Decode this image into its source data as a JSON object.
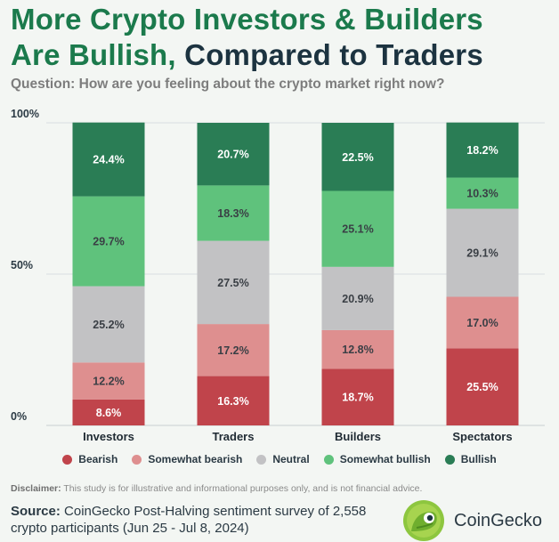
{
  "title": {
    "line1": "More Crypto Investors & Builders",
    "line2_green": "Are Bullish,",
    "line2_dark": "Compared to Traders"
  },
  "question": "Question: How are you feeling about the crypto market right now?",
  "chart_data": {
    "type": "bar",
    "stacked": true,
    "categories": [
      "Investors",
      "Traders",
      "Builders",
      "Spectators"
    ],
    "ylim": [
      0,
      100
    ],
    "yticks": [
      "0%",
      "50%",
      "100%"
    ],
    "grid": true,
    "legend_position": "bottom",
    "series": [
      {
        "name": "Bearish",
        "color": "#c0444b",
        "values": [
          8.6,
          16.3,
          18.7,
          25.5
        ],
        "labels": [
          "8.6%",
          "16.3%",
          "18.7%",
          "25.5%"
        ]
      },
      {
        "name": "Somewhat bearish",
        "color": "#de8f8f",
        "values": [
          12.2,
          17.2,
          12.8,
          17.0
        ],
        "labels": [
          "12.2%",
          "17.2%",
          "12.8%",
          "17.0%"
        ]
      },
      {
        "name": "Neutral",
        "color": "#c2c2c4",
        "values": [
          25.2,
          27.5,
          20.9,
          29.1
        ],
        "labels": [
          "25.2%",
          "27.5%",
          "20.9%",
          "29.1%"
        ]
      },
      {
        "name": "Somewhat bullish",
        "color": "#5fc27c",
        "values": [
          29.7,
          18.3,
          25.1,
          10.3
        ],
        "labels": [
          "29.7%",
          "18.3%",
          "25.1%",
          "10.3%"
        ]
      },
      {
        "name": "Bullish",
        "color": "#2a7d55",
        "values": [
          24.4,
          20.7,
          22.5,
          18.2
        ],
        "labels": [
          "24.4%",
          "20.7%",
          "22.5%",
          "18.2%"
        ]
      }
    ]
  },
  "legend": [
    {
      "label": "Bearish",
      "color": "#c0444b"
    },
    {
      "label": "Somewhat bearish",
      "color": "#de8f8f"
    },
    {
      "label": "Neutral",
      "color": "#c2c2c4"
    },
    {
      "label": "Somewhat bullish",
      "color": "#5fc27c"
    },
    {
      "label": "Bullish",
      "color": "#2a7d55"
    }
  ],
  "disclaimer": {
    "label": "Disclaimer:",
    "text": " This study is for illustrative and informational purposes only, and is not financial advice."
  },
  "source": {
    "label": "Source:",
    "text": " CoinGecko Post-Halving sentiment survey of 2,558 crypto participants (Jun 25 - Jul 8, 2024)"
  },
  "brand": {
    "name": "CoinGecko",
    "logo_icon": "gecko-logo-icon"
  }
}
